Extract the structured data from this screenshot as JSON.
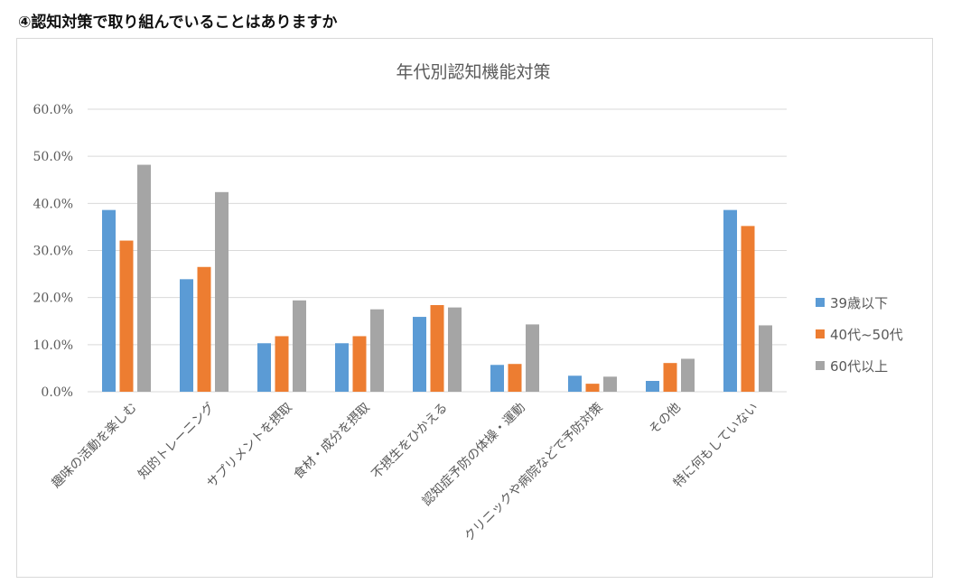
{
  "heading": "④認知対策で取り組んでいることはありますか",
  "chart_data": {
    "type": "bar",
    "title": "年代別認知機能対策",
    "categories": [
      "趣味の活動を楽しむ",
      "知的トレーニング",
      "サプリメントを摂取",
      "食材・成分を摂取",
      "不摂生をひかえる",
      "認知症予防の体操・運動",
      "クリニックや病院などで予防対策",
      "その他",
      "特に何もしていない"
    ],
    "series": [
      {
        "name": "39歳以下",
        "color": "#5b9bd5",
        "values": [
          38.6,
          23.9,
          10.3,
          10.3,
          15.9,
          5.7,
          3.4,
          2.3,
          38.6
        ]
      },
      {
        "name": "40代~50代",
        "color": "#ed7d31",
        "values": [
          32.1,
          26.5,
          11.8,
          11.8,
          18.4,
          5.9,
          1.7,
          6.1,
          35.2
        ]
      },
      {
        "name": "60代以上",
        "color": "#a5a5a5",
        "values": [
          48.2,
          42.4,
          19.4,
          17.5,
          17.9,
          14.3,
          3.2,
          7.0,
          14.1
        ]
      }
    ],
    "ylim": [
      0,
      60
    ],
    "yticks": [
      "0.0%",
      "10.0%",
      "20.0%",
      "30.0%",
      "40.0%",
      "50.0%",
      "60.0%"
    ],
    "grid": true,
    "legend": "right"
  }
}
